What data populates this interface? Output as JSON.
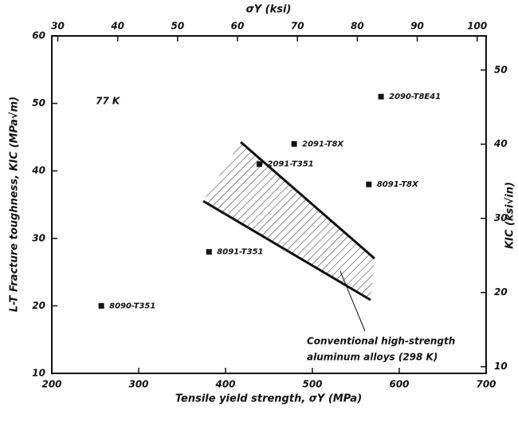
{
  "chart_data": {
    "type": "scatter",
    "xlabel": "Tensile yield strength, σY (MPa)",
    "ylabel": "L-T Fracture toughness, KIC (MPa√m)",
    "x2label": "σY (ksi)",
    "y2label": "KIC (ksi√in)",
    "xlim": [
      200,
      700
    ],
    "xticks": [
      200,
      300,
      400,
      500,
      600,
      700
    ],
    "ylim": [
      10,
      60
    ],
    "yticks": [
      10,
      20,
      30,
      40,
      50,
      60
    ],
    "x2lim": [
      29,
      101.5
    ],
    "x2ticks": [
      30,
      40,
      50,
      60,
      70,
      80,
      90,
      100
    ],
    "y2lim": [
      9.1,
      54.6
    ],
    "y2ticks": [
      10,
      20,
      30,
      40,
      50
    ],
    "series": [
      {
        "color": "#111111",
        "x": [
          257,
          381,
          439,
          479,
          565,
          579
        ],
        "values": [
          20,
          28,
          41,
          44,
          38,
          51
        ],
        "labels": [
          "8090-T351",
          "8091-T351",
          "2091-T351",
          "2091-T8X",
          "8091-T8X",
          "2090-T8E41"
        ]
      }
    ],
    "annotations": [
      "77 K",
      "Conventional high-strength",
      "aluminum alloys (298 K)"
    ]
  }
}
